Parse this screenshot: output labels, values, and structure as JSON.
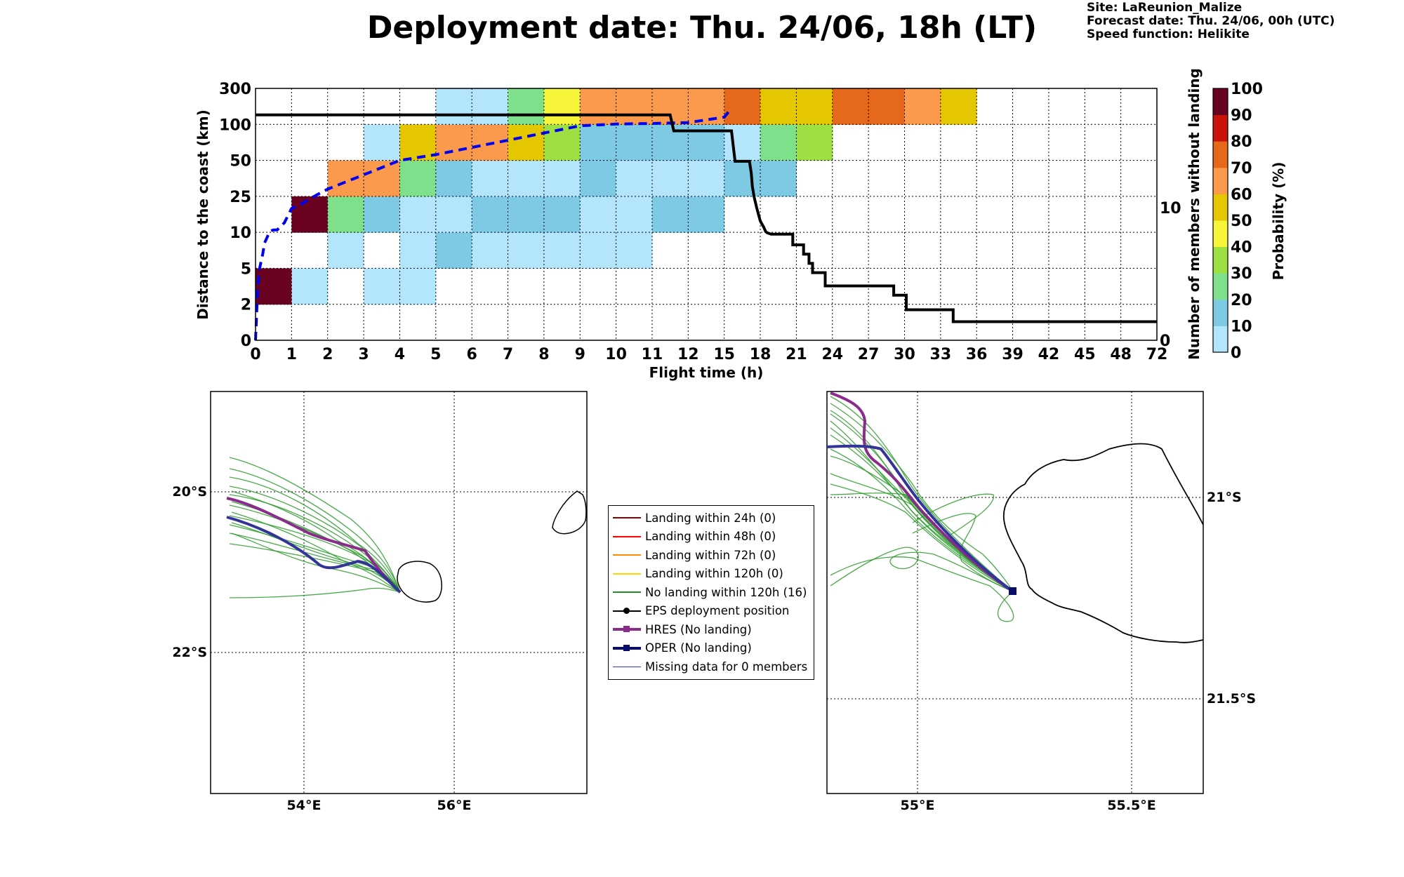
{
  "header": {
    "title": "Deployment date: Thu. 24/06, 18h (LT)",
    "meta_lines": [
      "Site: LaReunion_Malize",
      "Forecast date: Thu. 24/06, 00h (UTC)",
      "Speed function: Helikite"
    ]
  },
  "colors": {
    "prob_bins": [
      "#b3e5fc",
      "#7ecae4",
      "#7fe08b",
      "#9ee044",
      "#f6f539",
      "#e5c701",
      "#fb9a4d",
      "#e5681b",
      "#c9140b",
      "#6a0321"
    ],
    "dashed_line": "#0000ee",
    "step_line": "#000000",
    "track_green": "#2a9b2a",
    "track_hres": "#8b2b8b",
    "track_oper": "#333399",
    "coast": "#000000"
  },
  "chart_data": [
    {
      "type": "heatmap",
      "xlabel": "Flight time (h)",
      "ylabel": "Distance to the coast (km)",
      "y2label": "Number of members without landing",
      "x_ticks": [
        "0",
        "1",
        "2",
        "3",
        "4",
        "5",
        "6",
        "7",
        "8",
        "9",
        "10",
        "11",
        "12",
        "15",
        "18",
        "21",
        "24",
        "27",
        "30",
        "33",
        "36",
        "39",
        "42",
        "45",
        "48",
        "72"
      ],
      "y_ticks": [
        "0",
        "2",
        "5",
        "10",
        "25",
        "50",
        "100",
        "300"
      ],
      "y2_ticks": [
        "0",
        "10"
      ],
      "y2_range": [
        0,
        19
      ],
      "colorbar": {
        "label": "Probability (%)",
        "ticks": [
          "0",
          "10",
          "20",
          "30",
          "40",
          "50",
          "60",
          "70",
          "80",
          "90",
          "100"
        ]
      },
      "cells": [
        [
          0,
          1,
          "90-100"
        ],
        [
          1,
          1,
          "0-10"
        ],
        [
          3,
          1,
          "0-10"
        ],
        [
          4,
          1,
          "0-10"
        ],
        [
          2,
          2,
          "0-10"
        ],
        [
          4,
          2,
          "0-10"
        ],
        [
          5,
          2,
          "10-20"
        ],
        [
          6,
          2,
          "0-10"
        ],
        [
          7,
          2,
          "0-10"
        ],
        [
          8,
          2,
          "0-10"
        ],
        [
          9,
          2,
          "0-10"
        ],
        [
          10,
          2,
          "0-10"
        ],
        [
          1,
          3,
          "90-100"
        ],
        [
          2,
          3,
          "20-30"
        ],
        [
          3,
          3,
          "10-20"
        ],
        [
          4,
          3,
          "0-10"
        ],
        [
          5,
          3,
          "0-10"
        ],
        [
          6,
          3,
          "10-20"
        ],
        [
          7,
          3,
          "10-20"
        ],
        [
          8,
          3,
          "10-20"
        ],
        [
          9,
          3,
          "0-10"
        ],
        [
          10,
          3,
          "0-10"
        ],
        [
          11,
          3,
          "10-20"
        ],
        [
          12,
          3,
          "10-20"
        ],
        [
          2,
          4,
          "60-70"
        ],
        [
          3,
          4,
          "60-70"
        ],
        [
          4,
          4,
          "20-30"
        ],
        [
          5,
          4,
          "10-20"
        ],
        [
          6,
          4,
          "0-10"
        ],
        [
          7,
          4,
          "0-10"
        ],
        [
          8,
          4,
          "0-10"
        ],
        [
          9,
          4,
          "10-20"
        ],
        [
          10,
          4,
          "0-10"
        ],
        [
          11,
          4,
          "0-10"
        ],
        [
          12,
          4,
          "0-10"
        ],
        [
          13,
          4,
          "10-20"
        ],
        [
          14,
          4,
          "10-20"
        ],
        [
          3,
          5,
          "0-10"
        ],
        [
          4,
          5,
          "50-60"
        ],
        [
          5,
          5,
          "60-70"
        ],
        [
          6,
          5,
          "60-70"
        ],
        [
          7,
          5,
          "50-60"
        ],
        [
          8,
          5,
          "30-40"
        ],
        [
          9,
          5,
          "10-20"
        ],
        [
          10,
          5,
          "10-20"
        ],
        [
          11,
          5,
          "10-20"
        ],
        [
          12,
          5,
          "10-20"
        ],
        [
          13,
          5,
          "0-10"
        ],
        [
          14,
          5,
          "20-30"
        ],
        [
          15,
          5,
          "30-40"
        ],
        [
          5,
          6,
          "0-10"
        ],
        [
          6,
          6,
          "0-10"
        ],
        [
          7,
          6,
          "20-30"
        ],
        [
          8,
          6,
          "40-50"
        ],
        [
          9,
          6,
          "60-70"
        ],
        [
          10,
          6,
          "60-70"
        ],
        [
          11,
          6,
          "60-70"
        ],
        [
          12,
          6,
          "60-70"
        ],
        [
          13,
          6,
          "70-80"
        ],
        [
          14,
          6,
          "50-60"
        ],
        [
          15,
          6,
          "50-60"
        ],
        [
          16,
          6,
          "70-80"
        ],
        [
          17,
          6,
          "70-80"
        ],
        [
          18,
          6,
          "60-70"
        ],
        [
          19,
          6,
          "50-60"
        ]
      ],
      "members_without_landing": [
        [
          0,
          17
        ],
        [
          11.5,
          17
        ],
        [
          11.6,
          15.8
        ],
        [
          13.2,
          15.8
        ],
        [
          13.3,
          13.5
        ],
        [
          13.7,
          13.5
        ],
        [
          13.75,
          12.6
        ],
        [
          13.78,
          11.6
        ],
        [
          13.83,
          10.8
        ],
        [
          13.9,
          10
        ],
        [
          14,
          9
        ],
        [
          14.1,
          8.5
        ],
        [
          14.15,
          8.2
        ],
        [
          14.2,
          8.1
        ],
        [
          14.3,
          8
        ],
        [
          14.9,
          8
        ],
        [
          14.9,
          7.2
        ],
        [
          15.2,
          7.2
        ],
        [
          15.2,
          6.5
        ],
        [
          15.35,
          6.5
        ],
        [
          15.35,
          5.8
        ],
        [
          15.45,
          5.8
        ],
        [
          15.45,
          5.1
        ],
        [
          15.8,
          5.1
        ],
        [
          15.8,
          4.1
        ],
        [
          17.7,
          4.1
        ],
        [
          17.7,
          3.4
        ],
        [
          18.05,
          3.4
        ],
        [
          18.05,
          2.3
        ],
        [
          19.35,
          2.3
        ],
        [
          19.35,
          1.4
        ],
        [
          25,
          1.4
        ]
      ],
      "median_distance_km": [
        [
          0,
          0
        ],
        [
          0.05,
          2.6
        ],
        [
          0.1,
          4.8
        ],
        [
          0.2,
          7
        ],
        [
          0.25,
          8.5
        ],
        [
          0.4,
          10.5
        ],
        [
          0.5,
          11
        ],
        [
          0.6,
          11
        ],
        [
          0.8,
          14
        ],
        [
          1,
          20
        ],
        [
          1.3,
          22
        ],
        [
          1.5,
          24
        ],
        [
          2,
          30
        ],
        [
          3,
          40
        ],
        [
          4,
          50
        ],
        [
          5,
          58
        ],
        [
          6,
          68
        ],
        [
          7,
          78
        ],
        [
          8,
          88
        ],
        [
          9,
          98
        ],
        [
          10,
          102
        ],
        [
          11,
          105
        ],
        [
          12,
          110
        ],
        [
          13,
          140
        ],
        [
          13.2,
          190
        ]
      ]
    },
    {
      "type": "map",
      "lat_labels": [
        "20°S",
        "22°S"
      ],
      "lon_labels": [
        "54°E",
        "56°E"
      ]
    },
    {
      "type": "map",
      "lat_labels": [
        "21°S",
        "21.5°S"
      ],
      "lon_labels": [
        "55°E",
        "55.5°E"
      ]
    }
  ],
  "legend": {
    "items": [
      {
        "label": "Landing within 24h (0)",
        "color": "#8b0000",
        "marker": "none",
        "width": 2
      },
      {
        "label": "Landing within 48h (0)",
        "color": "#ff0000",
        "marker": "none",
        "width": 2
      },
      {
        "label": "Landing within 72h (0)",
        "color": "#ff8c00",
        "marker": "none",
        "width": 2
      },
      {
        "label": "Landing within 120h (0)",
        "color": "#ffd700",
        "marker": "none",
        "width": 2
      },
      {
        "label": "No landing within 120h (16)",
        "color": "#228b22",
        "marker": "none",
        "width": 2
      },
      {
        "label": "EPS deployment position",
        "color": "#000000",
        "marker": "circle",
        "width": 2
      },
      {
        "label": "HRES (No landing)",
        "color": "#8b2b8b",
        "marker": "square",
        "width": 4
      },
      {
        "label": "OPER (No landing)",
        "color": "#0b0b6b",
        "marker": "square",
        "width": 4
      },
      {
        "label": "Missing data for 0 members",
        "color": "#3333ff",
        "marker": "none",
        "width": 1
      }
    ]
  }
}
